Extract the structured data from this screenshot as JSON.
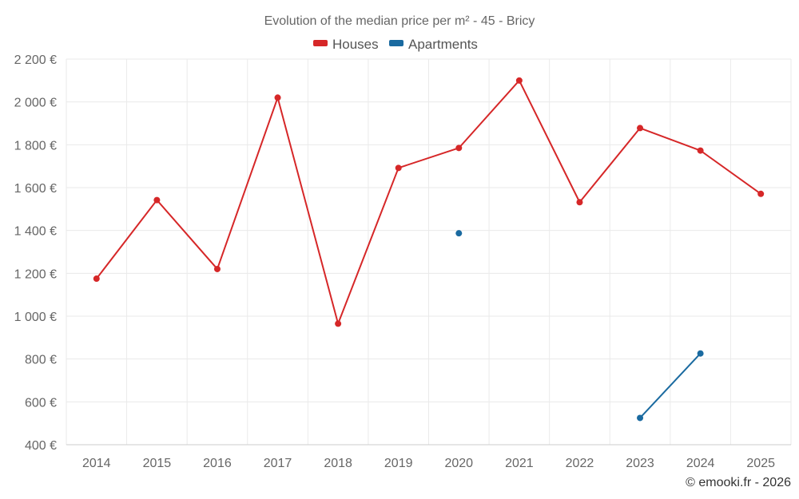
{
  "chart_data": {
    "type": "line",
    "title": "Evolution of the median price per m² - 45 - Bricy",
    "categories": [
      "2014",
      "2015",
      "2016",
      "2017",
      "2018",
      "2019",
      "2020",
      "2021",
      "2022",
      "2023",
      "2024",
      "2025"
    ],
    "series": [
      {
        "name": "Houses",
        "color": "#d62728",
        "values": [
          1175,
          1542,
          1220,
          2020,
          965,
          1692,
          1785,
          2100,
          1532,
          1878,
          1773,
          1571
        ]
      },
      {
        "name": "Apartments",
        "color": "#1a6aa0",
        "values": [
          null,
          null,
          null,
          null,
          null,
          null,
          1387,
          null,
          null,
          525,
          826,
          null
        ]
      }
    ],
    "ylim": [
      400,
      2200
    ],
    "yticks": [
      400,
      600,
      800,
      1000,
      1200,
      1400,
      1600,
      1800,
      2000,
      2200
    ],
    "ytick_labels": [
      "400 €",
      "600 €",
      "800 €",
      "1 000 €",
      "1 200 €",
      "1 400 €",
      "1 600 €",
      "1 800 €",
      "2 000 €",
      "2 200 €"
    ],
    "xlabel": "",
    "ylabel": "",
    "legend_position": "top-center",
    "grid": true
  },
  "credit": "© emooki.fr - 2026"
}
